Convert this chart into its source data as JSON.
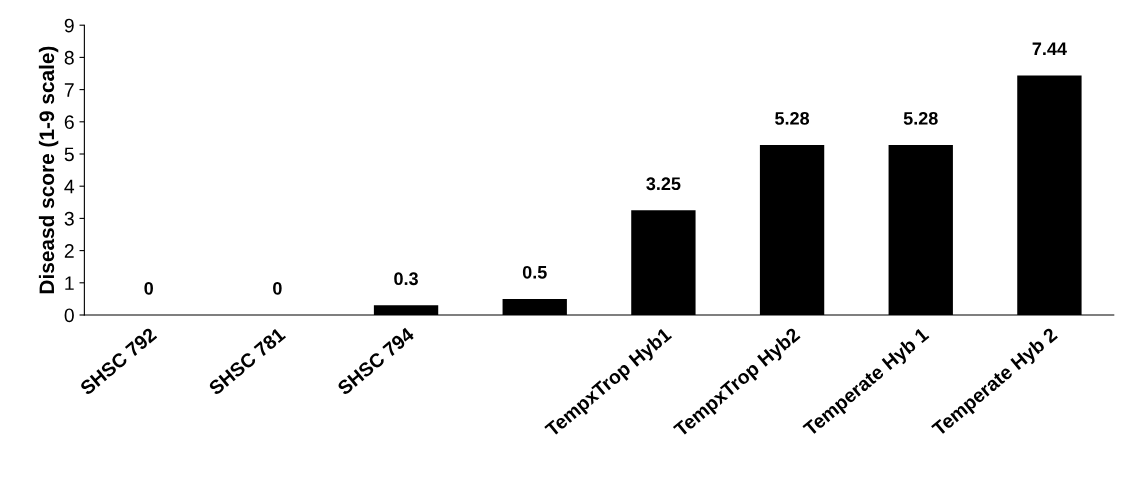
{
  "chart_data": {
    "type": "bar",
    "ylabel": "Diseasd score (1-9 scale)",
    "categories": [
      "SHSC 792",
      "SHSC 781",
      "SHSC 794",
      null,
      "TempxTrop Hyb1",
      "TempxTrop Hyb2",
      "Temperate Hyb 1",
      "Temperate Hyb 2"
    ],
    "values": [
      0,
      0,
      0.3,
      0.5,
      3.25,
      5.28,
      5.28,
      7.44
    ],
    "color": "#000000",
    "ylim": [
      0,
      9
    ],
    "yticks": [
      0,
      1,
      2,
      3,
      4,
      5,
      6,
      7,
      8,
      9
    ],
    "data_labels": true,
    "grid": false,
    "legend": false
  }
}
